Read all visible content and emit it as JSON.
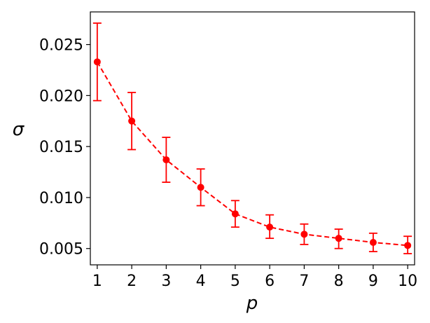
{
  "chart_data": {
    "type": "line",
    "title": "",
    "xlabel": "p",
    "ylabel": "σ",
    "x": [
      1,
      2,
      3,
      4,
      5,
      6,
      7,
      8,
      9,
      10
    ],
    "series": [
      {
        "values": [
          0.0233,
          0.0175,
          0.0137,
          0.011,
          0.0084,
          0.0071,
          0.0064,
          0.006,
          0.0056,
          0.0053
        ],
        "err_low": [
          0.0195,
          0.0147,
          0.0115,
          0.0092,
          0.0071,
          0.006,
          0.0054,
          0.005,
          0.0047,
          0.0045
        ],
        "err_high": [
          0.0271,
          0.0203,
          0.0159,
          0.0128,
          0.0097,
          0.0083,
          0.0074,
          0.0069,
          0.0065,
          0.0062
        ],
        "color": "#ff0000",
        "line_style": "dashed",
        "marker": "circle"
      }
    ],
    "xticks": [
      "1",
      "2",
      "3",
      "4",
      "5",
      "6",
      "7",
      "8",
      "9",
      "10"
    ],
    "yticks": [
      "0.005",
      "0.010",
      "0.015",
      "0.020",
      "0.025"
    ],
    "ytick_values": [
      0.005,
      0.01,
      0.015,
      0.02,
      0.025
    ],
    "xlim": [
      0.8,
      10.2
    ],
    "ylim": [
      0.0034,
      0.0282
    ],
    "grid": false,
    "legend": "none"
  }
}
